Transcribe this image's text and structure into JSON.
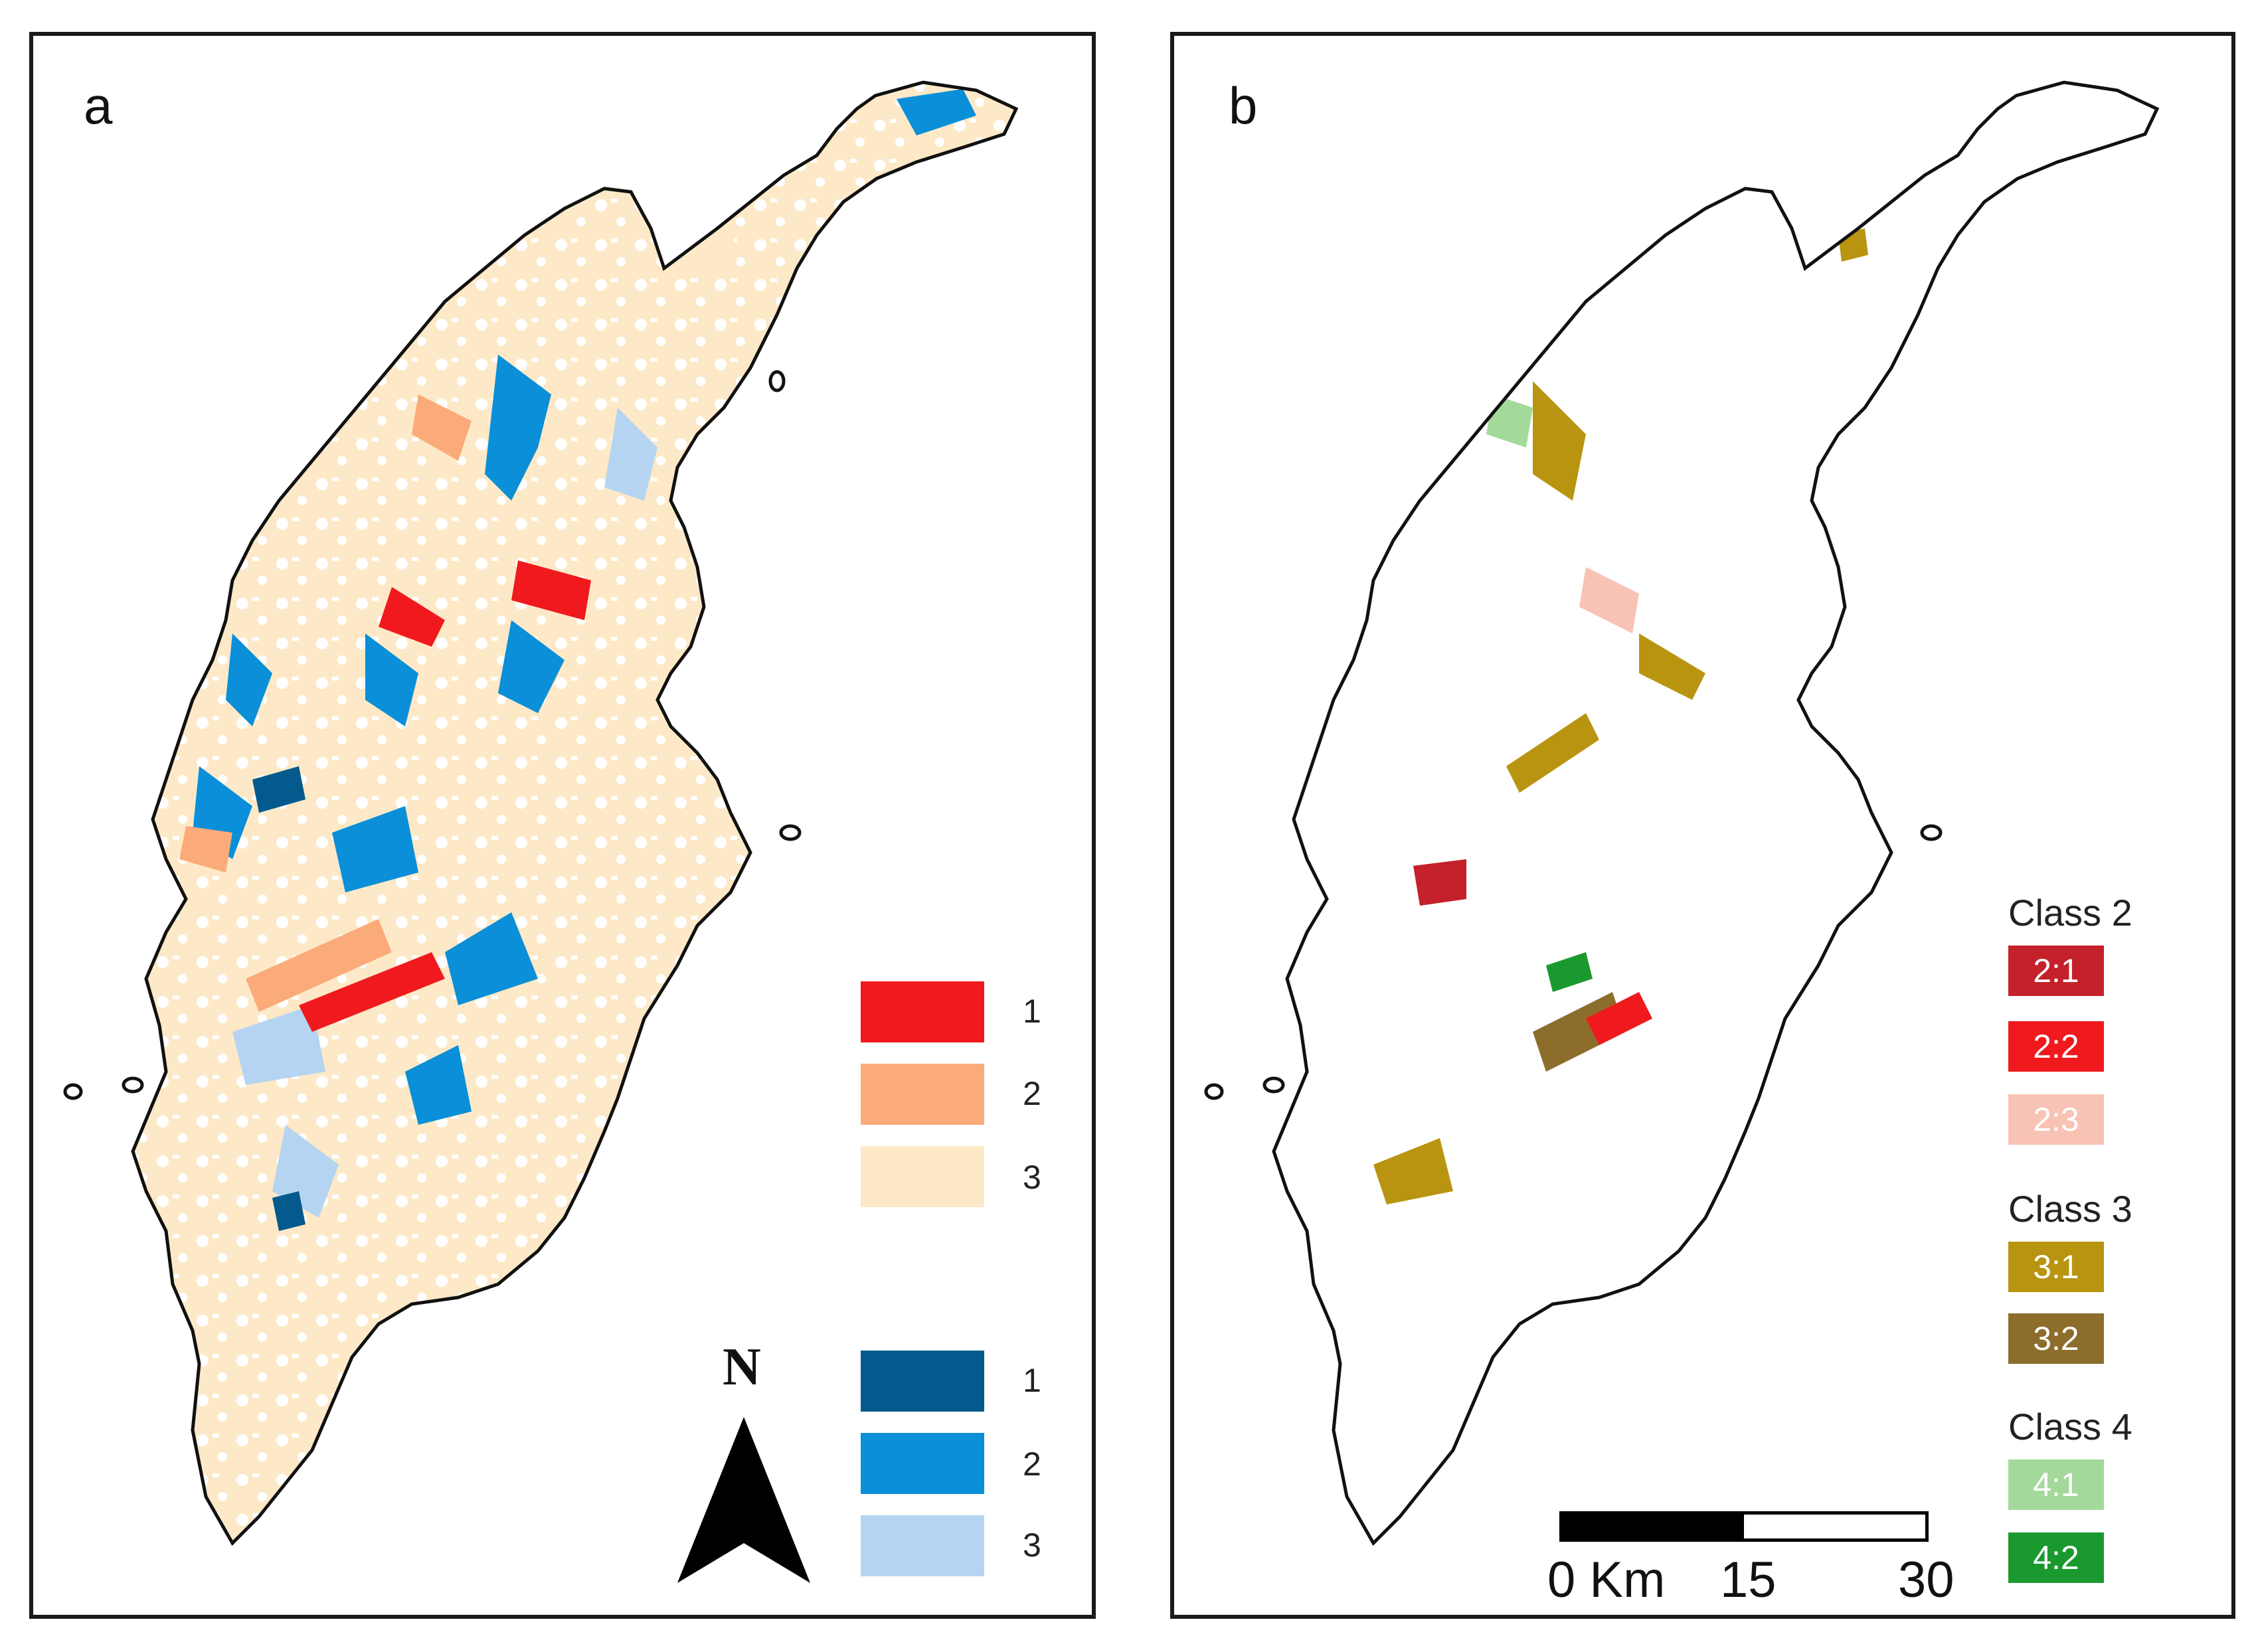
{
  "panel_a": {
    "label": "a",
    "legend_red": [
      {
        "label": "1",
        "color": "#f01a1e"
      },
      {
        "label": "2",
        "color": "#fbab79"
      },
      {
        "label": "3",
        "color": "#fde9c7"
      }
    ],
    "legend_blue": [
      {
        "label": "1",
        "color": "#045a8d"
      },
      {
        "label": "2",
        "color": "#0a8fd8"
      },
      {
        "label": "3",
        "color": "#b5d4f1"
      }
    ],
    "north_label": "N",
    "north_arrow_icon": "north-arrow-icon"
  },
  "panel_b": {
    "label": "b",
    "classes": [
      {
        "heading": "Class 2",
        "items": [
          {
            "label": "2:1",
            "color": "#c4212a"
          },
          {
            "label": "2:2",
            "color": "#f0191d"
          },
          {
            "label": "2:3",
            "color": "#f8c3b4"
          }
        ]
      },
      {
        "heading": "Class 3",
        "items": [
          {
            "label": "3:1",
            "color": "#b89410"
          },
          {
            "label": "3:2",
            "color": "#8c6d2c"
          }
        ]
      },
      {
        "heading": "Class 4",
        "items": [
          {
            "label": "4:1",
            "color": "#a3d99a"
          },
          {
            "label": "4:2",
            "color": "#1a9a2e"
          }
        ]
      }
    ],
    "scale": {
      "zero": "0 Km",
      "mid": "15",
      "end": "30"
    }
  }
}
